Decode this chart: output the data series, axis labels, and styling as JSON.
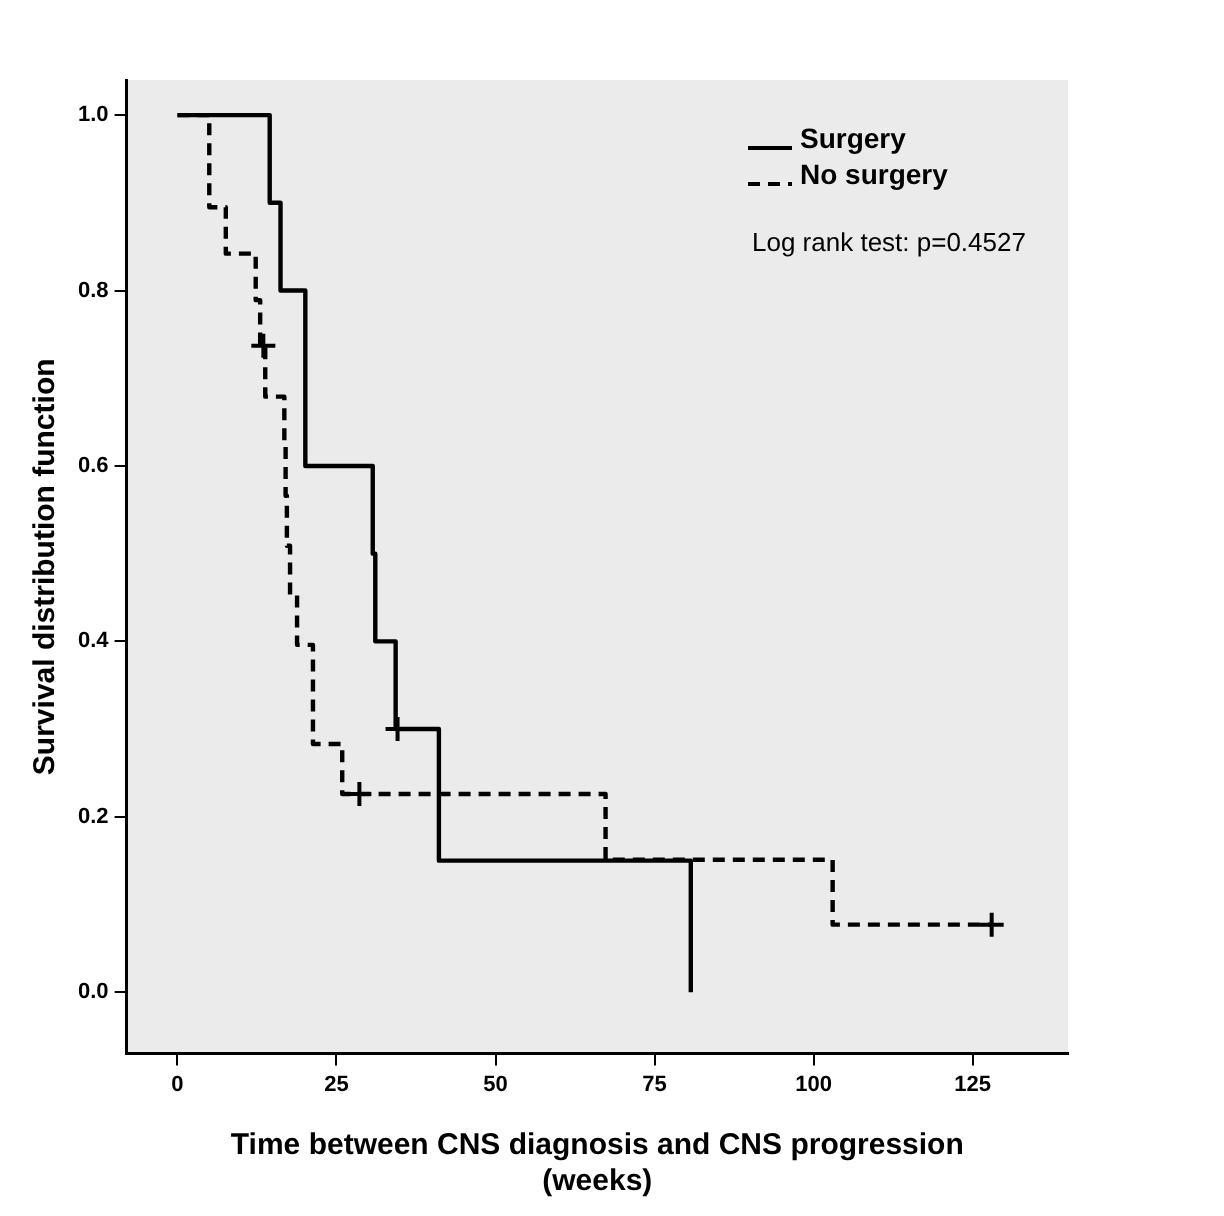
{
  "chart_data": {
    "type": "step",
    "xlabel": "Time between CNS diagnosis and CNS progression\n(weeks)",
    "ylabel": "Survival distribution function",
    "xlim": [
      -8,
      140
    ],
    "ylim": [
      -0.07,
      1.04
    ],
    "xticks": [
      0,
      25,
      50,
      75,
      100,
      125
    ],
    "yticks": [
      {
        "value": 0,
        "label": "0.0"
      },
      {
        "value": 0.2,
        "label": "0.2"
      },
      {
        "value": 0.4,
        "label": "0.4"
      },
      {
        "value": 0.6,
        "label": "0.6"
      },
      {
        "value": 0.8,
        "label": "0.8"
      },
      {
        "value": 1,
        "label": "1.0"
      }
    ],
    "legend": "top right",
    "grid": false,
    "annotations": [
      "Log rank test: p=0.4527"
    ],
    "series": [
      {
        "name": "Surgery",
        "color": "#000000",
        "line_style": "solid",
        "marker": "none",
        "x": [
          0,
          14.5,
          16.2,
          20.1,
          20.1,
          30.7,
          31.1,
          34.3,
          41.1,
          80.7
        ],
        "values": [
          1,
          0.9,
          0.8,
          0.7,
          0.6,
          0.5,
          0.4,
          0.3,
          0.15,
          0
        ]
      },
      {
        "name": "No surgery",
        "color": "#000000",
        "line_style": "dashed",
        "marker": "none",
        "x": [
          0,
          5,
          7.6,
          12.3,
          13,
          13.8,
          16.8,
          17,
          17.2,
          17.7,
          18.8,
          21.3,
          21.3,
          25.9,
          67.3,
          103,
          128
        ],
        "values": [
          1,
          0.895,
          0.842,
          0.789,
          0.737,
          0.679,
          0.623,
          0.566,
          0.509,
          0.453,
          0.396,
          0.34,
          0.283,
          0.226,
          0.151,
          0.077,
          0.077
        ]
      },
      {
        "type": "scatter",
        "color": "#000000",
        "marker": "cross",
        "x": [
          34.6
        ],
        "values": [
          0.3
        ]
      },
      {
        "type": "scatter",
        "color": "#000000",
        "marker": "cross",
        "x": [
          13.5,
          28.6,
          128
        ],
        "values": [
          0.737,
          0.226,
          0.077
        ]
      }
    ]
  }
}
